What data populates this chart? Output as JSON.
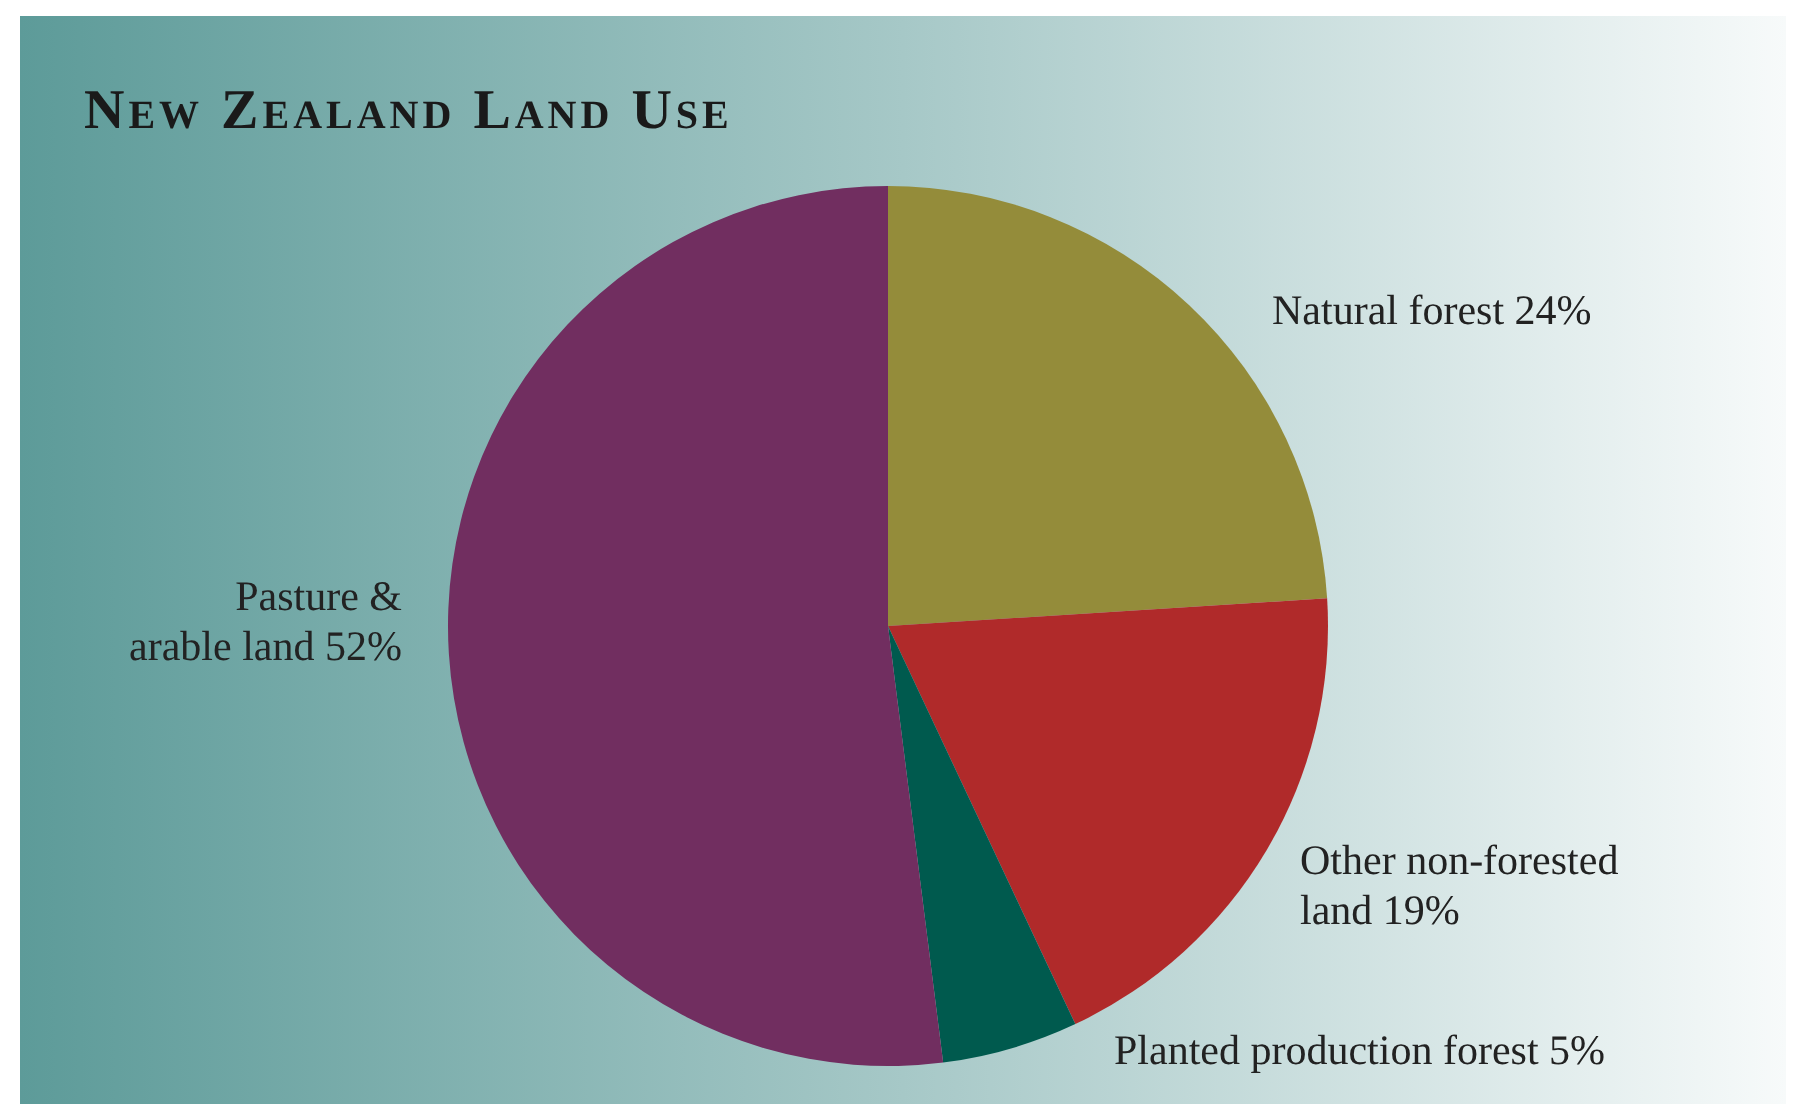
{
  "chart_data": {
    "type": "pie",
    "title": "New Zealand Land Use",
    "categories": [
      "Natural forest",
      "Other non-forested land",
      "Planted production forest",
      "Pasture & arable land"
    ],
    "values": [
      24,
      19,
      5,
      52
    ],
    "value_labels": [
      "24%",
      "19%",
      "5%",
      "52%"
    ],
    "colors": [
      "#948c3a",
      "#b02a2a",
      "#005a4e",
      "#712e60"
    ]
  }
}
